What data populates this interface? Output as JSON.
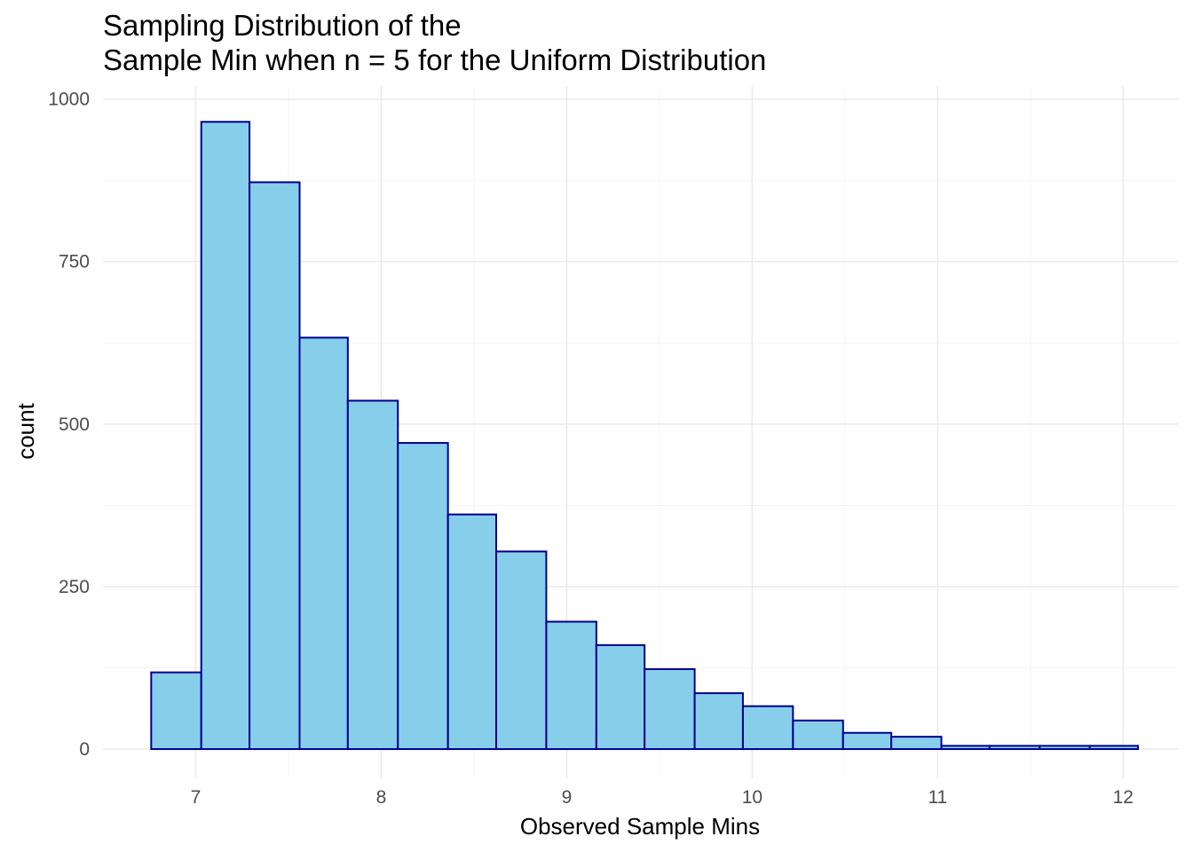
{
  "chart_data": {
    "type": "bar",
    "title_lines": [
      "Sampling Distribution of the",
      "Sample Min when n = 5 for the Uniform Distribution"
    ],
    "xlabel": "Observed Sample Mins",
    "ylabel": "count",
    "xlim": [
      6.5,
      12.3
    ],
    "ylim": [
      -45,
      1020
    ],
    "x_ticks": [
      7,
      8,
      9,
      10,
      11,
      12
    ],
    "y_ticks": [
      0,
      250,
      500,
      750,
      1000
    ],
    "grid": true,
    "bins": [
      {
        "x0": 6.76,
        "x1": 7.03,
        "count": 118
      },
      {
        "x0": 7.03,
        "x1": 7.29,
        "count": 965
      },
      {
        "x0": 7.29,
        "x1": 7.56,
        "count": 872
      },
      {
        "x0": 7.56,
        "x1": 7.82,
        "count": 633
      },
      {
        "x0": 7.82,
        "x1": 8.09,
        "count": 536
      },
      {
        "x0": 8.09,
        "x1": 8.36,
        "count": 471
      },
      {
        "x0": 8.36,
        "x1": 8.62,
        "count": 361
      },
      {
        "x0": 8.62,
        "x1": 8.89,
        "count": 304
      },
      {
        "x0": 8.89,
        "x1": 9.16,
        "count": 196
      },
      {
        "x0": 9.16,
        "x1": 9.42,
        "count": 160
      },
      {
        "x0": 9.42,
        "x1": 9.69,
        "count": 123
      },
      {
        "x0": 9.69,
        "x1": 9.95,
        "count": 86
      },
      {
        "x0": 9.95,
        "x1": 10.22,
        "count": 66
      },
      {
        "x0": 10.22,
        "x1": 10.49,
        "count": 44
      },
      {
        "x0": 10.49,
        "x1": 10.75,
        "count": 25
      },
      {
        "x0": 10.75,
        "x1": 11.02,
        "count": 19
      },
      {
        "x0": 11.02,
        "x1": 11.28,
        "count": 5
      },
      {
        "x0": 11.28,
        "x1": 11.55,
        "count": 5
      },
      {
        "x0": 11.55,
        "x1": 11.82,
        "count": 5
      },
      {
        "x0": 11.82,
        "x1": 12.08,
        "count": 5
      }
    ],
    "colors": {
      "bar_fill": "#87ceeb",
      "bar_outline": "#00008b",
      "grid": "#ebebeb",
      "tick_text": "#4d4d4d",
      "text": "#000000"
    }
  }
}
